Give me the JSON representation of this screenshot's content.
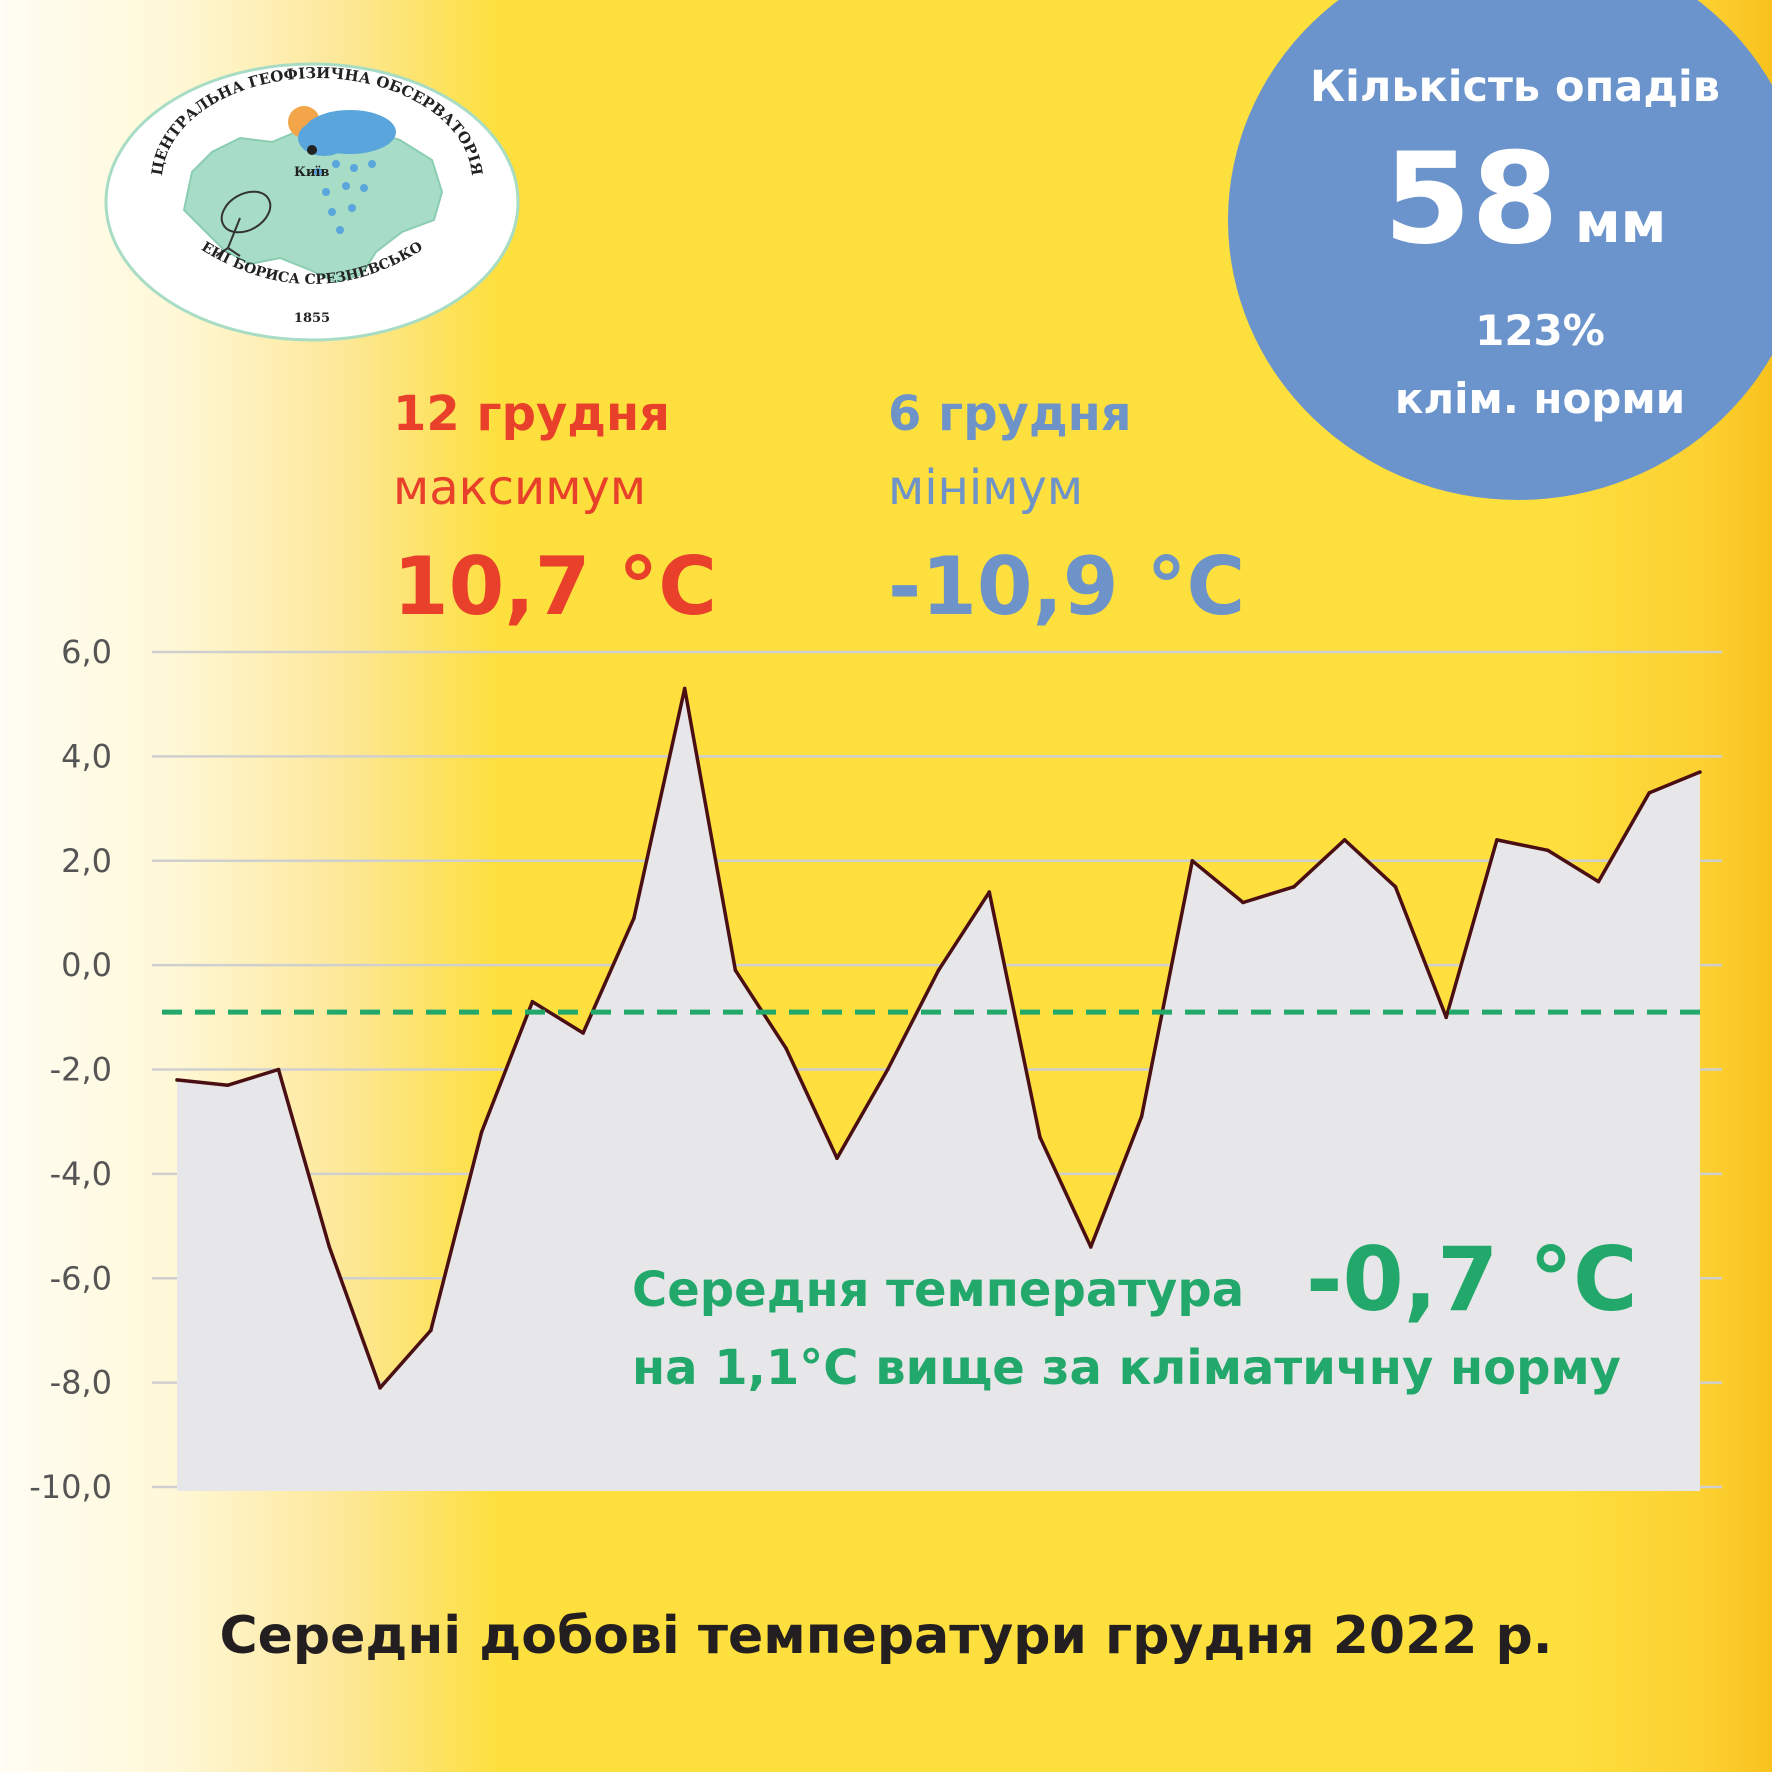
{
  "logo": {
    "arc_top": "ЦЕНТРАЛЬНА ГЕОФІЗИЧНА ОБСЕРВАТОРІЯ",
    "arc_bottom": "ІМЕНІ БОРИСА СРЕЗНЕВСЬКОГО",
    "city": "Київ",
    "year": "1855"
  },
  "precipitation": {
    "title": "Кількість опадів",
    "value": "58",
    "unit": "мм",
    "percent": "123%",
    "norm_label": "клім. норми",
    "circle_color": "#6b94cc"
  },
  "max": {
    "date": "12 грудня",
    "label": "максимум",
    "value": "10,7 °C",
    "color": "#e8402a"
  },
  "min": {
    "date": "6 грудня",
    "label": "мінімум",
    "value": "-10,9 °C",
    "color": "#6d93c8"
  },
  "mean": {
    "label": "Середня температура",
    "value": "-0,7 °C",
    "anomaly_text": "на 1,1°C вище за кліматичну норму",
    "color": "#22a86a"
  },
  "bottom_title": "Середні добові температури грудня 2022 р.",
  "chart_data": {
    "type": "area",
    "x": [
      1,
      2,
      3,
      4,
      5,
      6,
      7,
      8,
      9,
      10,
      11,
      12,
      13,
      14,
      15,
      16,
      17,
      18,
      19,
      20,
      21,
      22,
      23,
      24,
      25,
      26,
      27,
      28,
      29,
      30,
      31
    ],
    "series": [
      {
        "values": [
          -2.2,
          -2.3,
          -2.0,
          -5.4,
          -8.1,
          -7.0,
          -3.2,
          -0.7,
          -1.3,
          0.9,
          5.3,
          -0.1,
          -1.6,
          -3.7,
          -2.0,
          -0.1,
          1.4,
          -3.3,
          -5.4,
          -2.9,
          2.0,
          1.2,
          1.5,
          2.4,
          1.5,
          -1.0,
          2.4,
          2.2,
          1.6,
          3.3,
          3.7
        ]
      }
    ],
    "reference_line": {
      "value": -0.9,
      "style": "dashed",
      "color": "#22a86a"
    },
    "yticks": [
      "6,0",
      "4,0",
      "2,0",
      "0,0",
      "-2,0",
      "-4,0",
      "-6,0",
      "-8,0",
      "-10,0"
    ],
    "ylim": [
      -10,
      6
    ],
    "grid": true,
    "fill_color": "#e7e6e8",
    "line_color": "#4a0f12"
  }
}
